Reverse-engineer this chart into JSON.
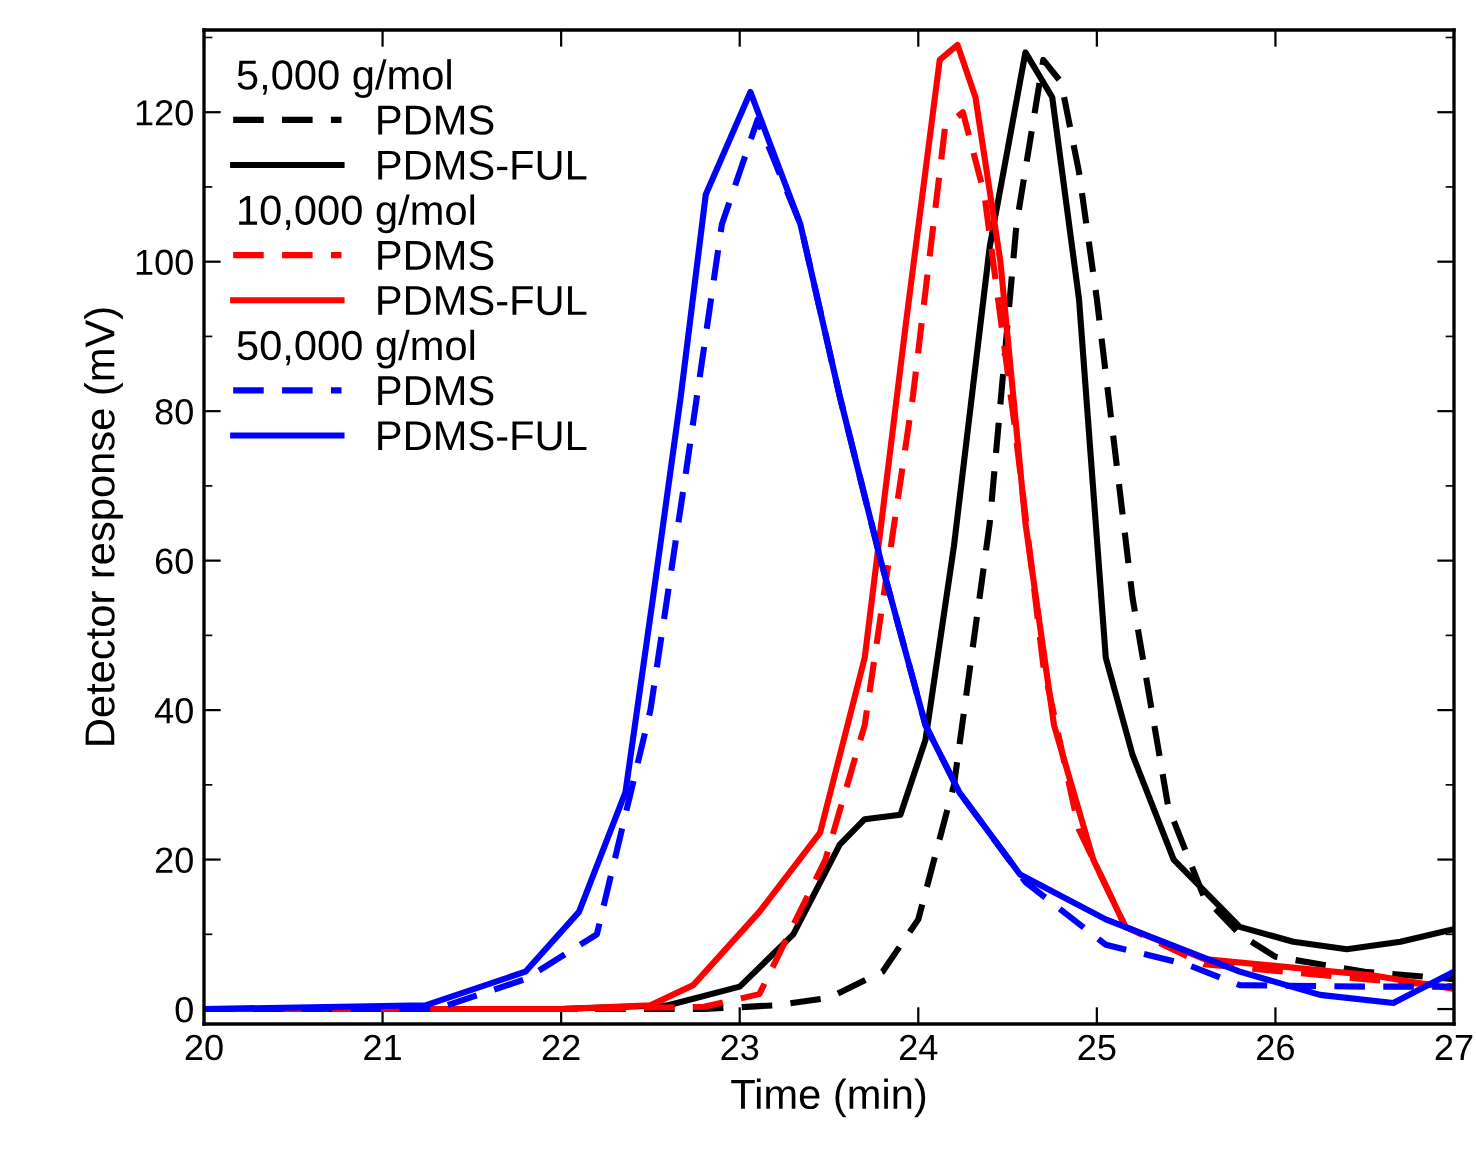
{
  "chart_data": {
    "type": "line",
    "xlabel": "Time (min)",
    "ylabel": "Detector response (mV)",
    "xlim": [
      20,
      27
    ],
    "xticks": [
      20,
      21,
      22,
      23,
      24,
      25,
      26,
      27
    ],
    "ylim": [
      -2,
      131
    ],
    "yticks": [
      0,
      20,
      40,
      60,
      80,
      100,
      120
    ],
    "grid": false,
    "legend": "top left",
    "annotations": [
      "5,000 g/mol",
      "10,000 g/mol",
      "50,000 g/mol"
    ],
    "series": [
      {
        "name": "PDMS",
        "color": "#000000",
        "line_style": "dashed",
        "x": [
          20,
          22,
          22.8,
          23.2,
          23.5,
          23.8,
          24.0,
          24.2,
          24.4,
          24.55,
          24.7,
          24.8,
          24.9,
          25.0,
          25.2,
          25.4,
          25.6,
          25.8,
          26.0,
          26.5,
          27
        ],
        "values": [
          0,
          0,
          0,
          0.5,
          1.5,
          5,
          12,
          30,
          65,
          105,
          127,
          124,
          112,
          95,
          55,
          27,
          15,
          10,
          7,
          5,
          4
        ]
      },
      {
        "name": "PDMS-FUL",
        "color": "#000000",
        "line_style": "solid",
        "x": [
          20,
          22,
          22.6,
          23.0,
          23.3,
          23.56,
          23.7,
          23.9,
          24.04,
          24.2,
          24.4,
          24.6,
          24.75,
          24.9,
          25.05,
          25.2,
          25.43,
          25.8,
          26.1,
          26.4,
          26.7,
          27
        ],
        "values": [
          0,
          0,
          0.5,
          3,
          10,
          22,
          25.4,
          26,
          36,
          62,
          102,
          128,
          122,
          95,
          47,
          34,
          20,
          11,
          9,
          8,
          9,
          10.7
        ]
      },
      {
        "name": "PDMS",
        "color": "#ff0000",
        "line_style": "dashed",
        "x": [
          20,
          22,
          22.8,
          23.11,
          23.48,
          23.7,
          23.97,
          24.15,
          24.25,
          24.37,
          24.54,
          24.7,
          24.9,
          25.16,
          25.6,
          26.5,
          27
        ],
        "values": [
          0,
          0,
          0.3,
          2,
          20,
          38,
          82,
          118,
          120,
          109,
          78,
          46,
          24,
          11,
          6,
          4,
          3
        ]
      },
      {
        "name": "PDMS-FUL",
        "color": "#ff0000",
        "line_style": "solid",
        "x": [
          20,
          22,
          22.5,
          22.74,
          23.11,
          23.45,
          23.7,
          23.93,
          24.12,
          24.22,
          24.32,
          24.46,
          24.6,
          24.76,
          24.98,
          25.16,
          25.6,
          26.55,
          27
        ],
        "values": [
          0,
          0,
          0.5,
          3.2,
          13,
          23.6,
          47,
          91.6,
          127,
          129,
          122,
          100,
          65,
          38,
          20,
          11,
          6.7,
          4.5,
          2.7
        ]
      },
      {
        "name": "PDMS",
        "color": "#0000ff",
        "line_style": "dashed",
        "x": [
          20,
          21.3,
          21.8,
          22.2,
          22.5,
          22.7,
          22.9,
          23.1,
          23.34,
          23.56,
          23.79,
          24.04,
          24.23,
          24.6,
          25.05,
          25.5,
          25.8,
          26.5,
          27
        ],
        "values": [
          0,
          0,
          4,
          10,
          40,
          72,
          105,
          119,
          105,
          82,
          60,
          38,
          29,
          17,
          8.6,
          6,
          3.2,
          3,
          3
        ]
      },
      {
        "name": "PDMS-FUL",
        "color": "#0000ff",
        "line_style": "solid",
        "x": [
          20,
          21.24,
          21.8,
          22.1,
          22.36,
          22.52,
          22.67,
          22.81,
          23.06,
          23.34,
          23.56,
          23.79,
          24.04,
          24.23,
          24.57,
          25.05,
          25.8,
          26.25,
          26.66,
          27
        ],
        "values": [
          0,
          0.5,
          5,
          13,
          29,
          56,
          82,
          109,
          122.7,
          105,
          82,
          60,
          38,
          29,
          18,
          12,
          5,
          1.9,
          0.8,
          5
        ]
      }
    ]
  }
}
